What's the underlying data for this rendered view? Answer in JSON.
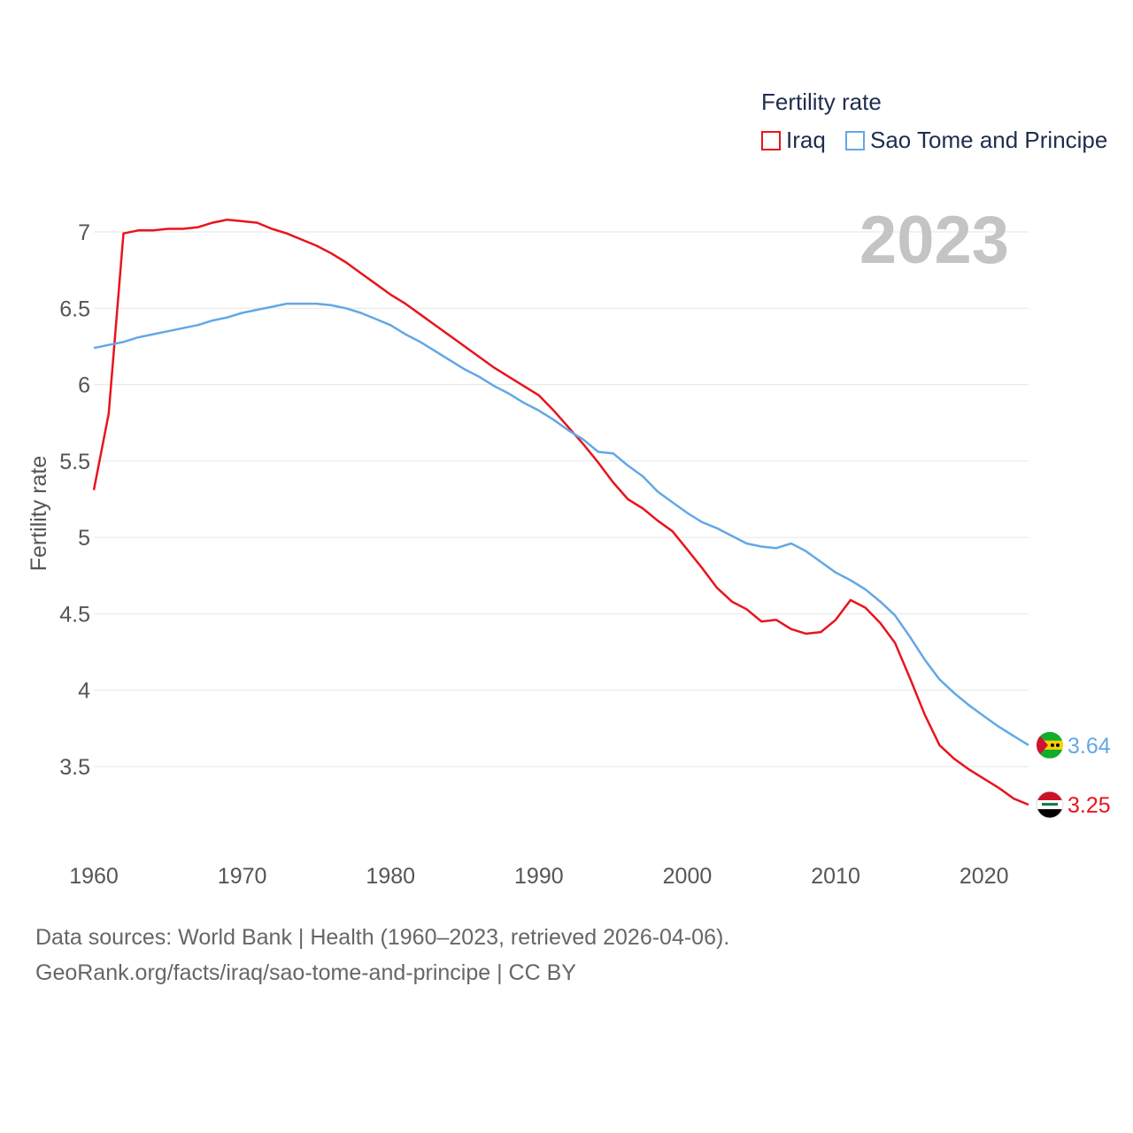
{
  "legend": {
    "title": "Fertility rate",
    "series": [
      {
        "name": "Iraq",
        "color": "#e8141c"
      },
      {
        "name": "Sao Tome and Principe",
        "color": "#62a8e5"
      }
    ]
  },
  "year_label": "2023",
  "footer": {
    "line1": "Data sources: World Bank | Health (1960–2023, retrieved 2026-04-06).",
    "line2": "GeoRank.org/facts/iraq/sao-tome-and-principe | CC BY"
  },
  "chart_data": {
    "type": "line",
    "title": "Fertility rate",
    "xlabel": "",
    "ylabel": "Fertility rate",
    "xlim": [
      1960,
      2023
    ],
    "ylim": [
      3.0,
      7.4
    ],
    "x_ticks": [
      1960,
      1970,
      1980,
      1990,
      2000,
      2010,
      2020
    ],
    "x_tick_labels": [
      "1960",
      "1970",
      "1980",
      "1990",
      "2000",
      "2010",
      "2020"
    ],
    "y_ticks": [
      3.5,
      4,
      4.5,
      5,
      5.5,
      6,
      6.5,
      7
    ],
    "y_tick_labels": [
      "3.5",
      "4",
      "4.5",
      "5",
      "5.5",
      "6",
      "6.5",
      "7"
    ],
    "x": [
      1960,
      1961,
      1962,
      1963,
      1964,
      1965,
      1966,
      1967,
      1968,
      1969,
      1970,
      1971,
      1972,
      1973,
      1974,
      1975,
      1976,
      1977,
      1978,
      1979,
      1980,
      1981,
      1982,
      1983,
      1984,
      1985,
      1986,
      1987,
      1988,
      1989,
      1990,
      1991,
      1992,
      1993,
      1994,
      1995,
      1996,
      1997,
      1998,
      1999,
      2000,
      2001,
      2002,
      2003,
      2004,
      2005,
      2006,
      2007,
      2008,
      2009,
      2010,
      2011,
      2012,
      2013,
      2014,
      2015,
      2016,
      2017,
      2018,
      2019,
      2020,
      2021,
      2022,
      2023
    ],
    "series": [
      {
        "name": "Iraq",
        "color": "#e8141c",
        "end_label": "3.25",
        "values": [
          5.31,
          5.81,
          6.99,
          7.01,
          7.01,
          7.02,
          7.02,
          7.03,
          7.06,
          7.08,
          7.07,
          7.06,
          7.02,
          6.99,
          6.95,
          6.91,
          6.86,
          6.8,
          6.73,
          6.66,
          6.59,
          6.53,
          6.46,
          6.39,
          6.32,
          6.25,
          6.18,
          6.11,
          6.05,
          5.99,
          5.93,
          5.83,
          5.72,
          5.61,
          5.49,
          5.36,
          5.25,
          5.19,
          5.11,
          5.04,
          4.92,
          4.8,
          4.67,
          4.58,
          4.53,
          4.45,
          4.46,
          4.4,
          4.37,
          4.38,
          4.46,
          4.59,
          4.54,
          4.44,
          4.31,
          4.08,
          3.84,
          3.64,
          3.55,
          3.48,
          3.42,
          3.36,
          3.29,
          3.25
        ]
      },
      {
        "name": "Sao Tome and Principe",
        "color": "#62a8e5",
        "end_label": "3.64",
        "values": [
          6.24,
          6.26,
          6.28,
          6.31,
          6.33,
          6.35,
          6.37,
          6.39,
          6.42,
          6.44,
          6.47,
          6.49,
          6.51,
          6.53,
          6.53,
          6.53,
          6.52,
          6.5,
          6.47,
          6.43,
          6.39,
          6.33,
          6.28,
          6.22,
          6.16,
          6.1,
          6.05,
          5.99,
          5.94,
          5.88,
          5.83,
          5.77,
          5.7,
          5.64,
          5.56,
          5.55,
          5.47,
          5.4,
          5.3,
          5.23,
          5.16,
          5.1,
          5.06,
          5.01,
          4.96,
          4.94,
          4.93,
          4.96,
          4.91,
          4.84,
          4.77,
          4.72,
          4.66,
          4.58,
          4.49,
          4.35,
          4.2,
          4.07,
          3.98,
          3.9,
          3.83,
          3.76,
          3.7,
          3.64
        ]
      }
    ]
  }
}
